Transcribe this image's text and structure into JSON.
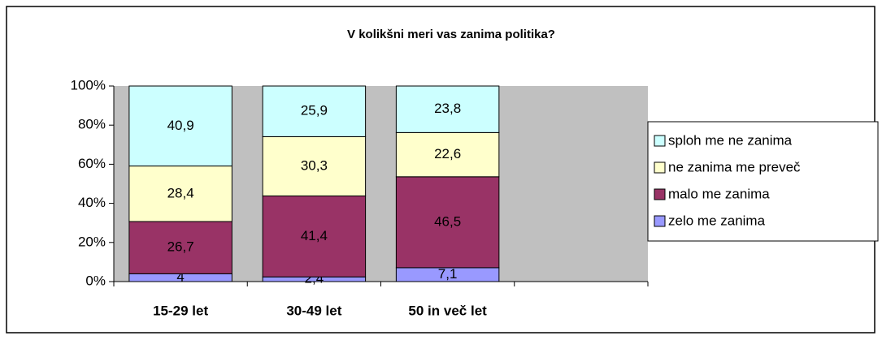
{
  "chart_data": {
    "type": "stacked_bar",
    "title": "V kolikšni meri vas zanima politika?",
    "categories": [
      "15-29 let",
      "30-49 let",
      "50 in več let",
      null
    ],
    "series": [
      {
        "name": "zelo me zanima",
        "color": "#9999ff",
        "values": [
          4,
          2.4,
          7.1,
          null
        ],
        "value_labels": [
          "4",
          "2,4",
          "7,1",
          null
        ]
      },
      {
        "name": "malo me zanima",
        "color": "#993366",
        "values": [
          26.7,
          41.4,
          46.5,
          null
        ],
        "value_labels": [
          "26,7",
          "41,4",
          "46,5",
          null
        ]
      },
      {
        "name": "ne zanima me preveč",
        "color": "#ffffcc",
        "values": [
          28.4,
          30.3,
          22.6,
          null
        ],
        "value_labels": [
          "28,4",
          "30,3",
          "22,6",
          null
        ]
      },
      {
        "name": "sploh me ne zanima",
        "color": "#ccffff",
        "values": [
          40.9,
          25.9,
          23.8,
          null
        ],
        "value_labels": [
          "40,9",
          "25,9",
          "23,8",
          null
        ]
      }
    ],
    "ylim": [
      0,
      100
    ],
    "yticks": [
      {
        "value": 0,
        "label": "0%"
      },
      {
        "value": 20,
        "label": "20%"
      },
      {
        "value": 40,
        "label": "40%"
      },
      {
        "value": 60,
        "label": "60%"
      },
      {
        "value": 80,
        "label": "80%"
      },
      {
        "value": 100,
        "label": "100%"
      }
    ],
    "grid": false,
    "legend": "right"
  }
}
